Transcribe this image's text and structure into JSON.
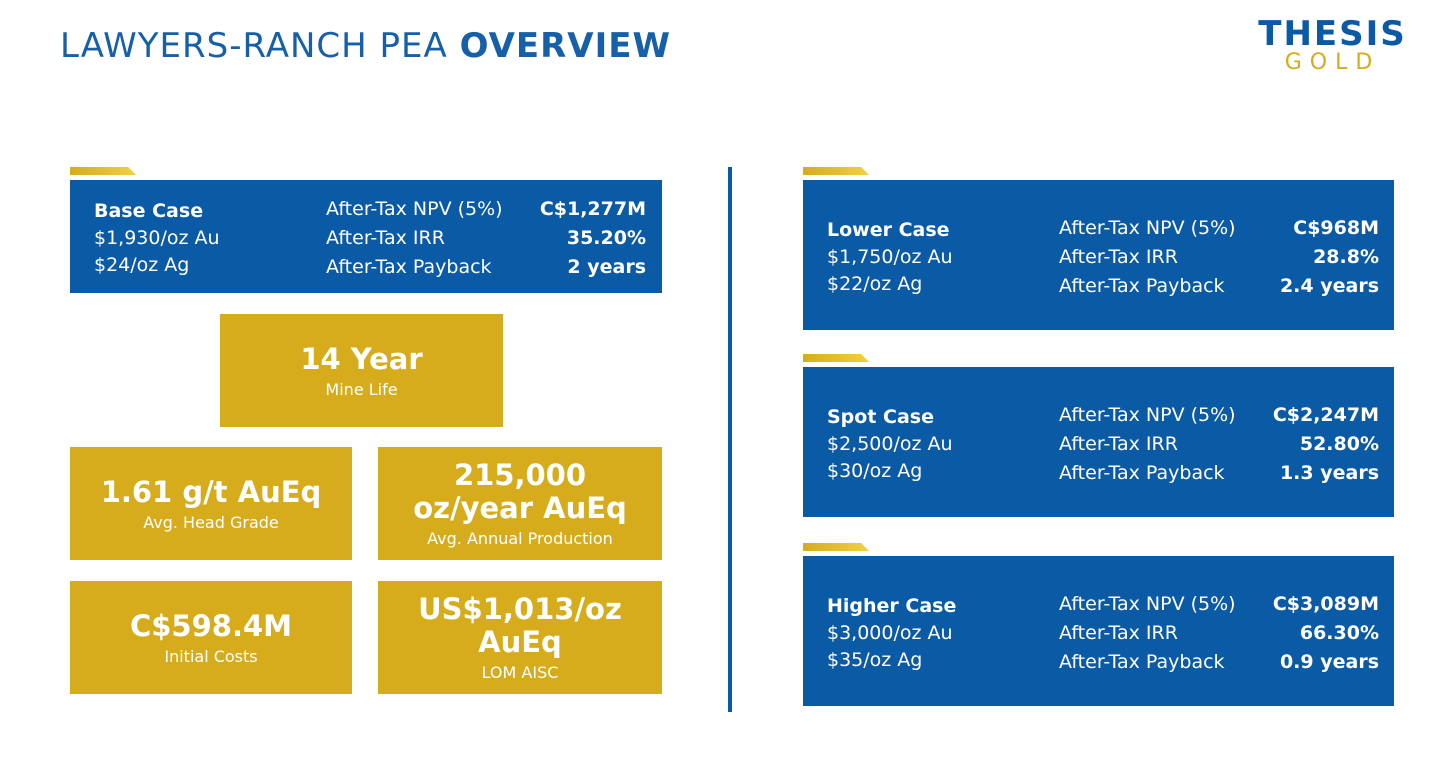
{
  "header": {
    "title_light": "LAWYERS-RANCH PEA",
    "title_bold": "OVERVIEW",
    "logo_top": "THESIS",
    "logo_bottom": "GOLD"
  },
  "base_case": {
    "name": "Base Case",
    "prices": [
      "$1,930/oz Au",
      "$24/oz Ag"
    ],
    "metrics": [
      {
        "label": "After-Tax NPV (5%)",
        "value": "C$1,277M"
      },
      {
        "label": "After-Tax IRR",
        "value": "35.20%"
      },
      {
        "label": "After-Tax Payback",
        "value": "2 years"
      }
    ]
  },
  "highlights": [
    {
      "value_lines": [
        "14 Year"
      ],
      "label": "Mine Life"
    },
    {
      "value_lines": [
        "1.61 g/t AuEq"
      ],
      "label": "Avg. Head Grade"
    },
    {
      "value_lines": [
        "215,000",
        "oz/year AuEq"
      ],
      "label": "Avg. Annual Production"
    },
    {
      "value_lines": [
        "C$598.4M"
      ],
      "label": "Initial Costs"
    },
    {
      "value_lines": [
        "US$1,013/oz",
        "AuEq"
      ],
      "label": "LOM AISC"
    }
  ],
  "cases": [
    {
      "name": "Lower Case",
      "prices": [
        "$1,750/oz Au",
        "$22/oz Ag"
      ],
      "metrics": [
        {
          "label": "After-Tax NPV (5%)",
          "value": "C$968M"
        },
        {
          "label": "After-Tax IRR",
          "value": "28.8%"
        },
        {
          "label": "After-Tax Payback",
          "value": "2.4 years"
        }
      ]
    },
    {
      "name": "Spot Case",
      "prices": [
        "$2,500/oz Au",
        "$30/oz Ag"
      ],
      "metrics": [
        {
          "label": "After-Tax NPV (5%)",
          "value": "C$2,247M"
        },
        {
          "label": "After-Tax IRR",
          "value": "52.80%"
        },
        {
          "label": "After-Tax Payback",
          "value": "1.3 years"
        }
      ]
    },
    {
      "name": "Higher Case",
      "prices": [
        "$3,000/oz Au",
        "$35/oz Ag"
      ],
      "metrics": [
        {
          "label": "After-Tax NPV (5%)",
          "value": "C$3,089M"
        },
        {
          "label": "After-Tax IRR",
          "value": "66.30%"
        },
        {
          "label": "After-Tax Payback",
          "value": "0.9 years"
        }
      ]
    }
  ]
}
